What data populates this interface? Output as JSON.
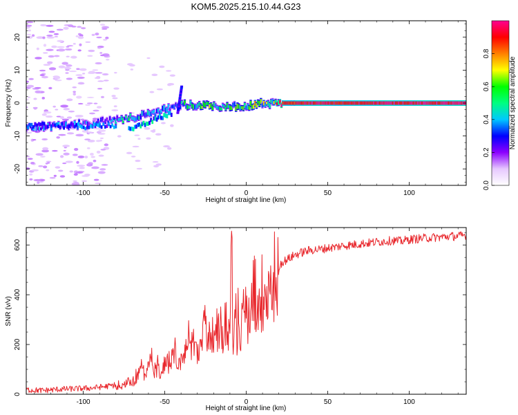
{
  "figure_title": "KOM5.2025.215.10.44.G23",
  "chart_data": [
    {
      "type": "heatmap",
      "xlabel": "Height of straight line (km)",
      "ylabel": "Frequency (Hz)",
      "xlim": [
        -135,
        135
      ],
      "ylim": [
        -25,
        25
      ],
      "xticks": [
        -100,
        -50,
        0,
        50,
        100
      ],
      "yticks": [
        -20,
        -10,
        0,
        10,
        20
      ],
      "colorbar": {
        "label": "Normalized spectral amplitude",
        "range": [
          0,
          1
        ],
        "ticks": [
          0.0,
          0.2,
          0.4,
          0.6,
          0.8
        ],
        "colors": [
          "#ffffff",
          "#e6c8ff",
          "#8c00ff",
          "#0000ff",
          "#00c8ff",
          "#00ff80",
          "#00ff00",
          "#ffff00",
          "#ff8000",
          "#ff0000",
          "#ff0090"
        ]
      },
      "ridge": [
        {
          "x": -135,
          "y": -7.5,
          "amp": 0.35
        },
        {
          "x": -120,
          "y": -7.0,
          "amp": 0.35
        },
        {
          "x": -100,
          "y": -6.5,
          "amp": 0.3
        },
        {
          "x": -85,
          "y": -5.5,
          "amp": 0.3
        },
        {
          "x": -75,
          "y": -4.5,
          "amp": 0.45
        },
        {
          "x": -65,
          "y": -4.0,
          "amp": 0.4
        },
        {
          "x": -55,
          "y": -3.0,
          "amp": 0.35
        },
        {
          "x": -45,
          "y": -1.0,
          "amp": 0.35
        },
        {
          "x": -38,
          "y": -0.5,
          "amp": 0.45
        },
        {
          "x": -30,
          "y": -0.5,
          "amp": 0.5
        },
        {
          "x": -22,
          "y": -0.5,
          "amp": 0.6
        },
        {
          "x": -12,
          "y": -1.5,
          "amp": 0.5
        },
        {
          "x": -5,
          "y": -1.0,
          "amp": 0.55
        },
        {
          "x": 5,
          "y": -0.5,
          "amp": 0.6
        },
        {
          "x": 15,
          "y": 0.0,
          "amp": 0.55
        },
        {
          "x": 22,
          "y": 0.0,
          "amp": 0.85
        },
        {
          "x": 40,
          "y": 0.0,
          "amp": 0.95
        },
        {
          "x": 60,
          "y": 0.0,
          "amp": 0.9
        },
        {
          "x": 80,
          "y": 0.0,
          "amp": 0.95
        },
        {
          "x": 100,
          "y": 0.0,
          "amp": 0.95
        },
        {
          "x": 135,
          "y": 0.0,
          "amp": 0.95
        }
      ]
    },
    {
      "type": "line",
      "xlabel": "Height of straight line (km)",
      "ylabel": "SNR (v/v)",
      "xlim": [
        -135,
        135
      ],
      "ylim": [
        0,
        670
      ],
      "xticks": [
        -100,
        -50,
        0,
        50,
        100
      ],
      "yticks": [
        0,
        200,
        400,
        600
      ],
      "line_color": "#e8262b",
      "series": [
        {
          "x": [
            -135,
            -125,
            -115,
            -105,
            -95,
            -88,
            -82,
            -78,
            -75,
            -72,
            -70,
            -67,
            -64,
            -62,
            -60,
            -57,
            -54,
            -52,
            -50,
            -47,
            -44,
            -41,
            -38,
            -35,
            -32,
            -29,
            -26,
            -24,
            -22,
            -20,
            -18,
            -16,
            -14,
            -12,
            -10,
            -9,
            -8,
            -7,
            -6,
            -4,
            -2,
            0,
            3,
            6,
            9,
            12,
            15,
            18,
            22,
            26,
            30,
            35,
            40,
            45,
            50,
            55,
            60,
            65,
            70,
            75,
            80,
            85,
            90,
            95,
            100,
            105,
            110,
            115,
            120,
            125,
            130,
            135
          ],
          "y": [
            18,
            15,
            20,
            22,
            25,
            30,
            35,
            45,
            40,
            60,
            50,
            75,
            120,
            90,
            170,
            110,
            130,
            80,
            150,
            120,
            200,
            160,
            180,
            220,
            260,
            190,
            350,
            240,
            300,
            260,
            300,
            310,
            280,
            320,
            300,
            620,
            200,
            290,
            280,
            310,
            330,
            330,
            380,
            400,
            430,
            450,
            470,
            500,
            530,
            545,
            560,
            572,
            580,
            582,
            588,
            592,
            598,
            600,
            605,
            608,
            612,
            615,
            618,
            615,
            622,
            625,
            628,
            630,
            632,
            635,
            635,
            640
          ]
        }
      ]
    }
  ]
}
